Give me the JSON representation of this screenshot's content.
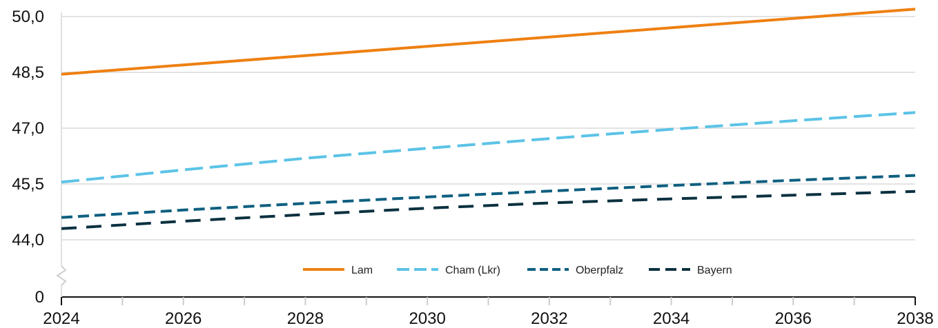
{
  "chart_data": {
    "type": "line",
    "title": "",
    "xlabel": "",
    "ylabel": "",
    "x": [
      2024,
      2026,
      2028,
      2030,
      2032,
      2034,
      2036,
      2038
    ],
    "x_tick_labels": [
      "2024",
      "2026",
      "2028",
      "2030",
      "2032",
      "2034",
      "2036",
      "2038"
    ],
    "y_tick_labels": [
      "0",
      "44,0",
      "45,5",
      "47,0",
      "48,5",
      "50,0"
    ],
    "y_ticks": [
      44.0,
      45.5,
      47.0,
      48.5,
      50.0
    ],
    "ylim": [
      44.0,
      50.0
    ],
    "axis_break": true,
    "grid": true,
    "legend_position": "bottom-center",
    "series": [
      {
        "name": "Lam",
        "color": "#EE8012",
        "dash": "solid",
        "values": [
          48.45,
          48.7,
          48.95,
          49.2,
          49.45,
          49.7,
          49.95,
          50.2
        ]
      },
      {
        "name": "Cham (Lkr)",
        "color": "#5BC3E6",
        "dash": "long",
        "values": [
          45.55,
          45.88,
          46.19,
          46.46,
          46.72,
          46.97,
          47.2,
          47.42
        ]
      },
      {
        "name": "Oberpfalz",
        "color": "#0E5F80",
        "dash": "medium",
        "values": [
          44.6,
          44.8,
          44.98,
          45.15,
          45.31,
          45.46,
          45.6,
          45.73
        ]
      },
      {
        "name": "Bayern",
        "color": "#0B3140",
        "dash": "wide",
        "values": [
          44.3,
          44.5,
          44.68,
          44.85,
          44.99,
          45.1,
          45.2,
          45.3
        ]
      }
    ]
  }
}
